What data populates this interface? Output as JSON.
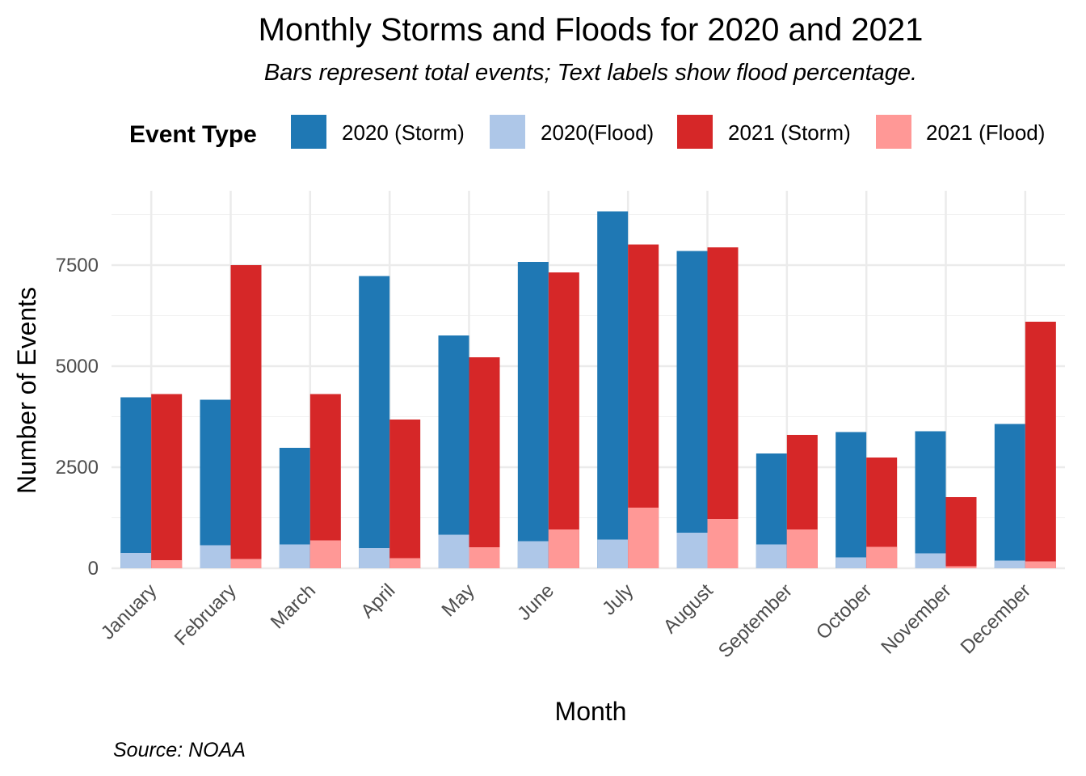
{
  "chart_data": {
    "type": "bar",
    "title": "Monthly Storms and Floods for 2020 and 2021",
    "subtitle": "Bars represent total events; Text labels show flood percentage.",
    "xlabel": "Month",
    "ylabel": "Number of Events",
    "caption": "Source: NOAA",
    "legend_title": "Event Type",
    "legend_position": "top",
    "grid": true,
    "ylim": [
      0,
      8800
    ],
    "y_ticks": [
      0,
      2500,
      5000,
      7500
    ],
    "y_tick_labels": [
      "0",
      "2500",
      "5000",
      "7500"
    ],
    "categories": [
      "January",
      "February",
      "March",
      "April",
      "May",
      "June",
      "July",
      "August",
      "September",
      "October",
      "November",
      "December"
    ],
    "series": [
      {
        "name": "2020 (Storm)",
        "year": "2020",
        "kind": "storm",
        "color": "#1F78B4",
        "values": [
          4230,
          4170,
          2980,
          7230,
          5760,
          7580,
          8830,
          7850,
          2840,
          3370,
          3390,
          3570
        ]
      },
      {
        "name": "2020(Flood)",
        "year": "2020",
        "kind": "flood",
        "color": "#AEC7E8",
        "values": [
          380,
          570,
          590,
          500,
          830,
          670,
          710,
          880,
          590,
          270,
          370,
          190
        ]
      },
      {
        "name": "2021 (Storm)",
        "year": "2021",
        "kind": "storm",
        "color": "#D62728",
        "values": [
          4310,
          7500,
          4310,
          3680,
          5220,
          7320,
          8010,
          7940,
          3300,
          2740,
          1760,
          6100
        ]
      },
      {
        "name": "2021 (Flood)",
        "year": "2021",
        "kind": "flood",
        "color": "#FF9896",
        "values": [
          200,
          230,
          690,
          250,
          520,
          960,
          1500,
          1220,
          960,
          530,
          50,
          170
        ]
      }
    ]
  }
}
